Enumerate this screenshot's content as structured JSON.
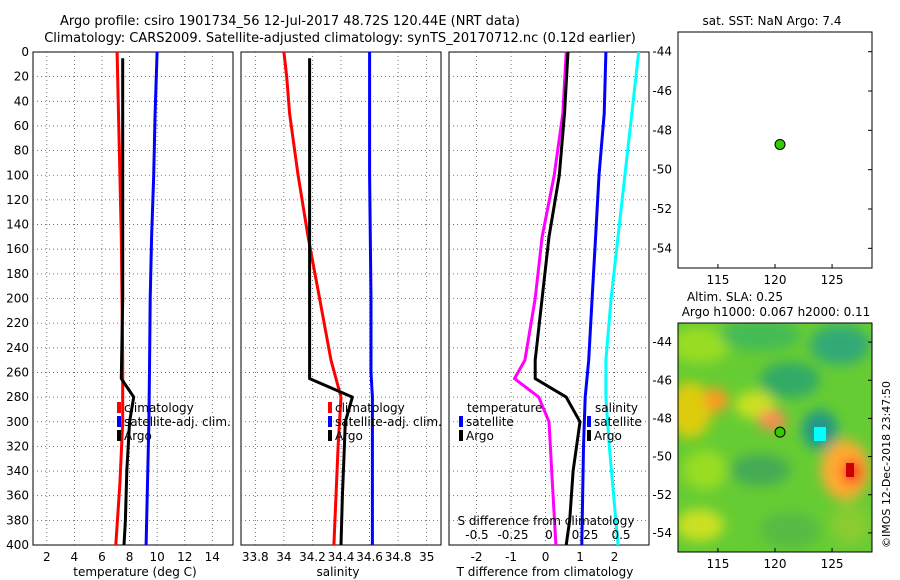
{
  "title": {
    "line1": "Argo profile: csiro 1901734_56 12-Jul-2017 48.72S 120.44E (NRT data)",
    "line2": "Climatology: CARS2009. Satellite-adjusted climatology: synTS_20170712.nc (0.12d earlier)"
  },
  "colors": {
    "climatology": "#ff0000",
    "satellite": "#0000ff",
    "argo": "#000000",
    "t_diff": "#ff00ff",
    "s_diff_argo": "#00ffff",
    "s_diff_sat": "#0000ff",
    "point": "#33cc00"
  },
  "chart_data": [
    {
      "type": "line",
      "name": "temperature",
      "xlabel": "temperature (deg C)",
      "xlim": [
        1,
        15.5
      ],
      "ylim": [
        400,
        0
      ],
      "xticks": [
        "2",
        "4",
        "6",
        "8",
        "10",
        "12",
        "14"
      ],
      "yticks": [
        "0",
        "20",
        "40",
        "60",
        "80",
        "100",
        "120",
        "140",
        "160",
        "180",
        "200",
        "220",
        "240",
        "260",
        "280",
        "300",
        "320",
        "340",
        "360",
        "380",
        "400"
      ],
      "legend": [
        "climatology",
        "satellite-adj. clim.",
        "Argo"
      ],
      "series": [
        {
          "name": "climatology",
          "depth": [
            0,
            50,
            100,
            150,
            200,
            250,
            300,
            350,
            400
          ],
          "values": [
            7.1,
            7.2,
            7.3,
            7.4,
            7.45,
            7.5,
            7.5,
            7.3,
            7.0
          ]
        },
        {
          "name": "satellite-adj. clim.",
          "depth": [
            0,
            50,
            100,
            150,
            200,
            250,
            300,
            350,
            400
          ],
          "values": [
            10.0,
            9.85,
            9.75,
            9.6,
            9.5,
            9.45,
            9.4,
            9.3,
            9.2
          ]
        },
        {
          "name": "Argo",
          "depth": [
            5,
            100,
            200,
            265,
            280,
            300,
            340,
            380,
            400
          ],
          "values": [
            7.5,
            7.5,
            7.5,
            7.4,
            8.3,
            8.0,
            7.8,
            7.7,
            7.6
          ]
        }
      ]
    },
    {
      "type": "line",
      "name": "salinity",
      "xlabel": "salinity",
      "xlim": [
        33.7,
        35.1
      ],
      "ylim": [
        400,
        0
      ],
      "xticks": [
        "33.8",
        "34",
        "34.2",
        "34.4",
        "34.6",
        "34.8",
        "35"
      ],
      "legend": [
        "climatology",
        "satellite-adj. clim.",
        "Argo"
      ],
      "series": [
        {
          "name": "climatology",
          "depth": [
            0,
            20,
            50,
            100,
            150,
            200,
            250,
            280,
            320,
            400
          ],
          "values": [
            34.0,
            34.02,
            34.04,
            34.1,
            34.17,
            34.25,
            34.33,
            34.4,
            34.38,
            34.35
          ]
        },
        {
          "name": "satellite-adj. clim.",
          "depth": [
            0,
            100,
            200,
            260,
            280,
            320,
            400
          ],
          "values": [
            34.6,
            34.6,
            34.61,
            34.61,
            34.62,
            34.62,
            34.62
          ]
        },
        {
          "name": "Argo",
          "depth": [
            5,
            100,
            200,
            265,
            280,
            300,
            330,
            360,
            400
          ],
          "values": [
            34.18,
            34.18,
            34.18,
            34.18,
            34.48,
            34.43,
            34.42,
            34.41,
            34.4
          ]
        }
      ]
    },
    {
      "type": "line",
      "name": "difference from climatology",
      "xlabel": "T difference from climatology",
      "xlabel2": "S difference from climatology",
      "xlim": [
        -2.8,
        3.0
      ],
      "ylim": [
        400,
        0
      ],
      "xticks": [
        "-2",
        "-1",
        "0",
        "1",
        "2"
      ],
      "xticks2": [
        "-0.5",
        "-0.25",
        "0",
        "0.25",
        "0.5"
      ],
      "legend_left_title": "temperature",
      "legend_right_title": "salinity",
      "legend": [
        "satellite",
        "Argo"
      ],
      "series": [
        {
          "name": "T satellite",
          "depth": [
            0,
            50,
            100,
            150,
            200,
            250,
            265,
            280,
            300,
            350,
            400
          ],
          "values": [
            0.6,
            0.5,
            0.25,
            -0.1,
            -0.3,
            -0.6,
            -0.9,
            -0.2,
            0.1,
            0.2,
            0.3
          ]
        },
        {
          "name": "T Argo",
          "depth": [
            0,
            50,
            100,
            150,
            200,
            250,
            265,
            280,
            300,
            340,
            380,
            400
          ],
          "values": [
            0.65,
            0.55,
            0.4,
            0.1,
            -0.1,
            -0.3,
            -0.3,
            0.6,
            1.0,
            0.8,
            0.7,
            0.6
          ]
        },
        {
          "name": "S satellite",
          "depth": [
            0,
            50,
            100,
            150,
            200,
            250,
            280,
            320,
            400
          ],
          "values": [
            1.75,
            1.7,
            1.55,
            1.45,
            1.35,
            1.25,
            1.15,
            1.1,
            1.05
          ]
        },
        {
          "name": "S Argo",
          "depth": [
            0,
            50,
            100,
            150,
            200,
            250,
            280,
            320,
            400
          ],
          "values": [
            2.7,
            2.5,
            2.3,
            2.1,
            1.9,
            1.75,
            1.75,
            1.85,
            2.1
          ]
        }
      ]
    }
  ],
  "map1": {
    "title": "sat. SST: NaN Argo: 7.4",
    "xticks": [
      "115",
      "120",
      "125"
    ],
    "yticks": [
      "-44",
      "-46",
      "-48",
      "-50",
      "-52",
      "-54"
    ],
    "point": {
      "lon": 120.44,
      "lat": -48.72
    }
  },
  "map2": {
    "title1": "Altim. SLA: 0.25",
    "title2": "Argo h1000: 0.067 h2000: 0.11",
    "xticks": [
      "115",
      "120",
      "125"
    ],
    "yticks": [
      "-44",
      "-46",
      "-48",
      "-50",
      "-52",
      "-54"
    ],
    "point": {
      "lon": 120.44,
      "lat": -48.72
    }
  },
  "watermark": "©IMOS 12-Dec-2018 23:47:50"
}
